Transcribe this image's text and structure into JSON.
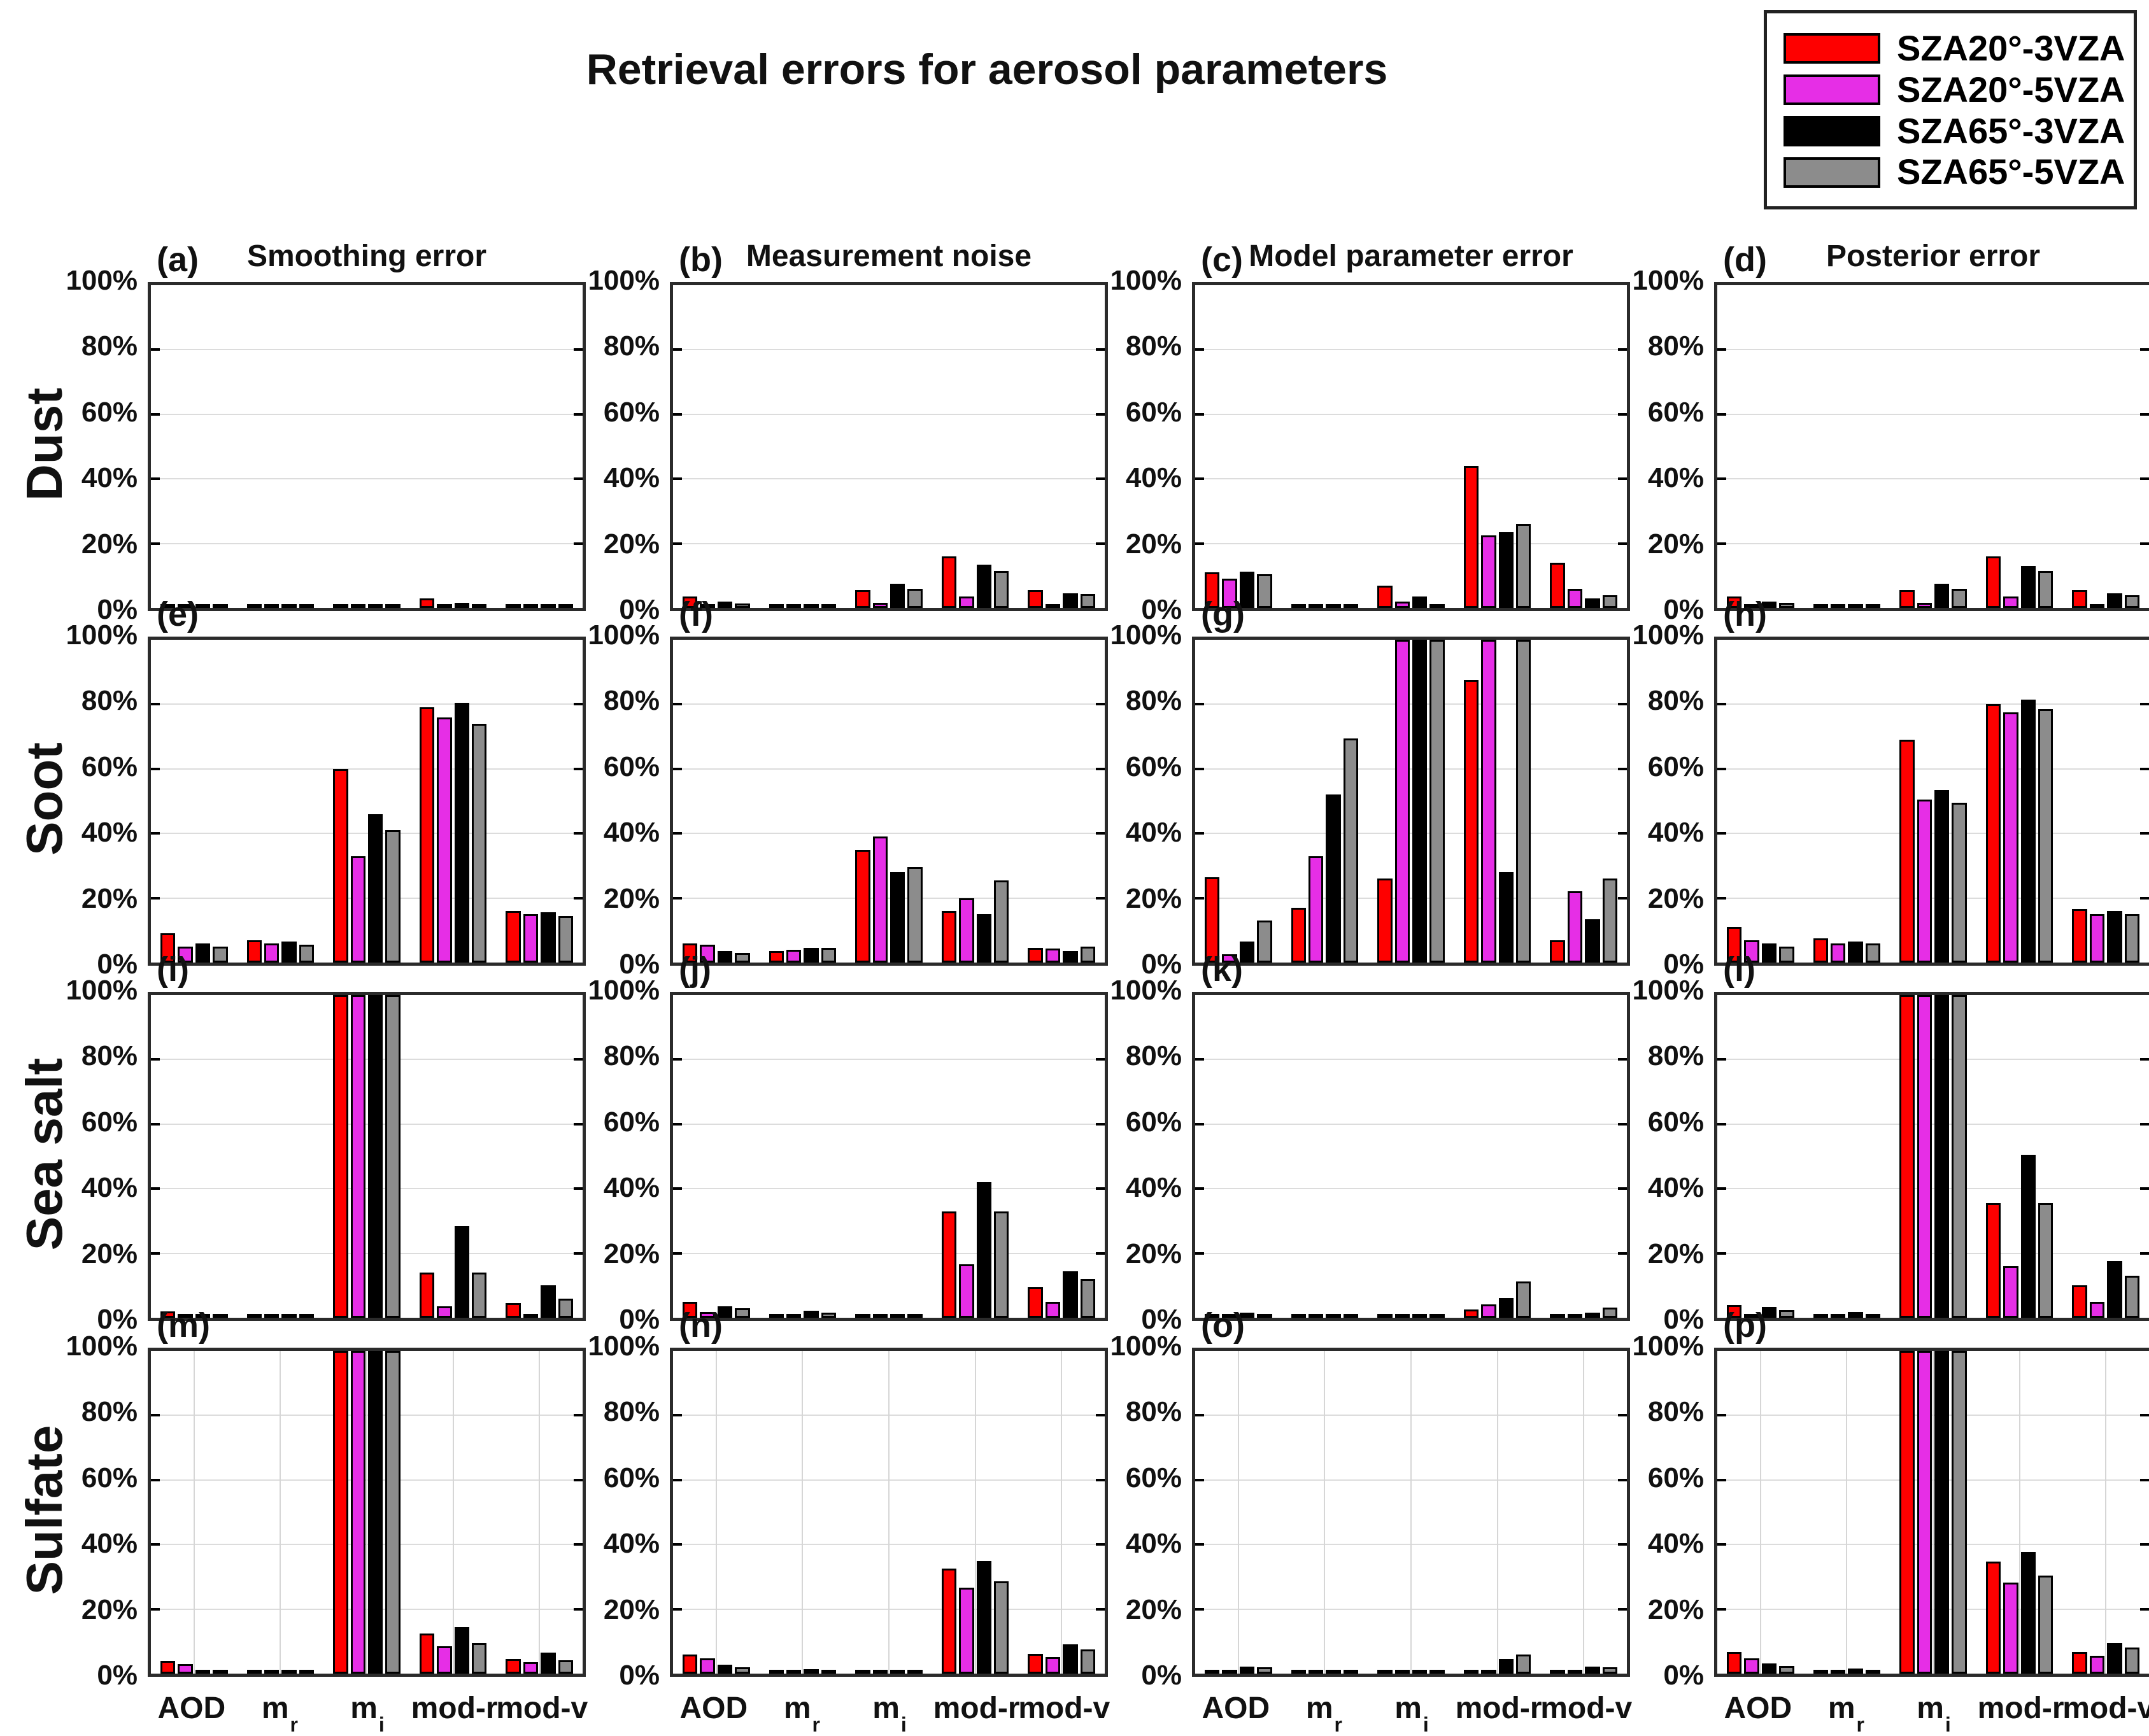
{
  "title": "Retrieval errors for aerosol parameters",
  "legend": {
    "items": [
      {
        "label": "SZA20°-3VZA",
        "color": "#fe0000"
      },
      {
        "label": "SZA20°-5VZA",
        "color": "#e62ee6"
      },
      {
        "label": "SZA65°-3VZA",
        "color": "#000000"
      },
      {
        "label": "SZA65°-5VZA",
        "color": "#8c8c8c"
      }
    ]
  },
  "chart_data": {
    "type": "bar",
    "categories": [
      "AOD",
      "m_r",
      "m_i",
      "mod-r",
      "mod-v"
    ],
    "rows": [
      "Dust",
      "Soot",
      "Sea salt",
      "Sulfate"
    ],
    "columns": [
      "Smoothing error",
      "Measurement noise",
      "Model parameter error",
      "Posterior error"
    ],
    "series_names": [
      "SZA20°-3VZA",
      "SZA20°-5VZA",
      "SZA65°-3VZA",
      "SZA65°-5VZA"
    ],
    "series_colors": [
      "#fe0000",
      "#e62ee6",
      "#000000",
      "#8c8c8c"
    ],
    "ylim": [
      0,
      100
    ],
    "yticks": [
      "0%",
      "20%",
      "40%",
      "60%",
      "80%",
      "100%"
    ],
    "grid": "horizontal all panels; vertical gridlines visible on bottom row",
    "legend_position": "top-right",
    "units": "percent",
    "panels": [
      {
        "letter": "(a)",
        "row": "Dust",
        "column": "Smoothing error",
        "series": [
          {
            "name": "SZA20°-3VZA",
            "values": [
              1.0,
              0.3,
              1.0,
              3.0,
              1.2
            ]
          },
          {
            "name": "SZA20°-5VZA",
            "values": [
              0.3,
              0.2,
              0.3,
              0.5,
              0.3
            ]
          },
          {
            "name": "SZA65°-3VZA",
            "values": [
              0.4,
              0.2,
              0.6,
              1.5,
              0.8
            ]
          },
          {
            "name": "SZA65°-5VZA",
            "values": [
              0.3,
              0.2,
              0.5,
              1.2,
              0.6
            ]
          }
        ]
      },
      {
        "letter": "(b)",
        "row": "Dust",
        "column": "Measurement noise",
        "series": [
          {
            "name": "SZA20°-3VZA",
            "values": [
              3.5,
              0.3,
              5.5,
              16.0,
              5.5
            ]
          },
          {
            "name": "SZA20°-5VZA",
            "values": [
              1.0,
              0.2,
              1.5,
              3.5,
              1.0
            ]
          },
          {
            "name": "SZA65°-3VZA",
            "values": [
              2.0,
              0.3,
              7.5,
              13.5,
              4.5
            ]
          },
          {
            "name": "SZA65°-5VZA",
            "values": [
              1.3,
              0.3,
              6.0,
              11.5,
              4.3
            ]
          }
        ]
      },
      {
        "letter": "(c)",
        "row": "Dust",
        "column": "Model parameter error",
        "series": [
          {
            "name": "SZA20°-3VZA",
            "values": [
              11.0,
              0.6,
              7.0,
              44.0,
              14.0
            ]
          },
          {
            "name": "SZA20°-5VZA",
            "values": [
              9.0,
              0.6,
              2.0,
              22.5,
              6.0
            ]
          },
          {
            "name": "SZA65°-3VZA",
            "values": [
              11.2,
              0.4,
              3.5,
              23.5,
              3.0
            ]
          },
          {
            "name": "SZA65°-5VZA",
            "values": [
              10.5,
              0.4,
              0.4,
              26.0,
              4.0
            ]
          }
        ]
      },
      {
        "letter": "(d)",
        "row": "Dust",
        "column": "Posterior error",
        "series": [
          {
            "name": "SZA20°-3VZA",
            "values": [
              3.5,
              0.4,
              5.5,
              16.0,
              5.5
            ]
          },
          {
            "name": "SZA20°-5VZA",
            "values": [
              1.0,
              0.3,
              1.5,
              3.5,
              1.0
            ]
          },
          {
            "name": "SZA65°-3VZA",
            "values": [
              2.0,
              0.4,
              7.5,
              13.0,
              4.5
            ]
          },
          {
            "name": "SZA65°-5VZA",
            "values": [
              1.5,
              0.3,
              6.0,
              11.5,
              4.0
            ]
          }
        ]
      },
      {
        "letter": "(e)",
        "row": "Soot",
        "column": "Smoothing error",
        "series": [
          {
            "name": "SZA20°-3VZA",
            "values": [
              9.0,
              7.0,
              60.0,
              79.0,
              16.0
            ]
          },
          {
            "name": "SZA20°-5VZA",
            "values": [
              5.0,
              6.0,
              33.0,
              76.0,
              15.0
            ]
          },
          {
            "name": "SZA65°-3VZA",
            "values": [
              6.0,
              6.5,
              46.0,
              80.5,
              15.5
            ]
          },
          {
            "name": "SZA65°-5VZA",
            "values": [
              5.0,
              5.5,
              41.0,
              74.0,
              14.5
            ]
          }
        ]
      },
      {
        "letter": "(f)",
        "row": "Soot",
        "column": "Measurement noise",
        "series": [
          {
            "name": "SZA20°-3VZA",
            "values": [
              6.0,
              3.5,
              35.0,
              16.0,
              4.5
            ]
          },
          {
            "name": "SZA20°-5VZA",
            "values": [
              5.5,
              4.0,
              39.0,
              20.0,
              4.3
            ]
          },
          {
            "name": "SZA65°-3VZA",
            "values": [
              3.5,
              4.5,
              28.0,
              15.0,
              3.5
            ]
          },
          {
            "name": "SZA65°-5VZA",
            "values": [
              3.0,
              4.5,
              29.5,
              25.5,
              5.0
            ]
          }
        ]
      },
      {
        "letter": "(g)",
        "row": "Soot",
        "column": "Model parameter error",
        "series": [
          {
            "name": "SZA20°-3VZA",
            "values": [
              26.5,
              17.0,
              26.0,
              87.5,
              7.0
            ]
          },
          {
            "name": "SZA20°-5VZA",
            "values": [
              2.5,
              33.0,
              100.0,
              100.0,
              22.0
            ]
          },
          {
            "name": "SZA65°-3VZA",
            "values": [
              6.5,
              52.0,
              100.0,
              28.0,
              13.5
            ]
          },
          {
            "name": "SZA65°-5VZA",
            "values": [
              13.0,
              69.5,
              100.0,
              100.0,
              26.0
            ]
          }
        ]
      },
      {
        "letter": "(h)",
        "row": "Soot",
        "column": "Posterior error",
        "series": [
          {
            "name": "SZA20°-3VZA",
            "values": [
              11.0,
              7.5,
              69.0,
              80.0,
              16.5
            ]
          },
          {
            "name": "SZA20°-5VZA",
            "values": [
              7.0,
              6.0,
              50.5,
              77.5,
              15.0
            ]
          },
          {
            "name": "SZA65°-3VZA",
            "values": [
              6.0,
              6.5,
              53.5,
              81.5,
              16.0
            ]
          },
          {
            "name": "SZA65°-5VZA",
            "values": [
              5.0,
              6.0,
              49.5,
              78.5,
              15.0
            ]
          }
        ]
      },
      {
        "letter": "(i)",
        "row": "Sea salt",
        "column": "Smoothing error",
        "series": [
          {
            "name": "SZA20°-3VZA",
            "values": [
              2.0,
              0.3,
              100.0,
              14.0,
              4.5
            ]
          },
          {
            "name": "SZA20°-5VZA",
            "values": [
              0.5,
              0.2,
              100.0,
              3.5,
              1.0
            ]
          },
          {
            "name": "SZA65°-3VZA",
            "values": [
              0.8,
              0.3,
              100.0,
              28.5,
              10.0
            ]
          },
          {
            "name": "SZA65°-5VZA",
            "values": [
              0.6,
              0.3,
              100.0,
              14.0,
              6.0
            ]
          }
        ]
      },
      {
        "letter": "(j)",
        "row": "Sea salt",
        "column": "Measurement noise",
        "series": [
          {
            "name": "SZA20°-3VZA",
            "values": [
              5.0,
              0.7,
              0.4,
              33.0,
              9.5
            ]
          },
          {
            "name": "SZA20°-5VZA",
            "values": [
              1.8,
              0.5,
              0.3,
              16.5,
              5.0
            ]
          },
          {
            "name": "SZA65°-3VZA",
            "values": [
              3.5,
              2.2,
              0.4,
              42.0,
              14.5
            ]
          },
          {
            "name": "SZA65°-5VZA",
            "values": [
              3.0,
              1.6,
              0.3,
              33.0,
              12.0
            ]
          }
        ]
      },
      {
        "letter": "(k)",
        "row": "Sea salt",
        "column": "Model parameter error",
        "series": [
          {
            "name": "SZA20°-3VZA",
            "values": [
              0.3,
              0.3,
              0.3,
              2.5,
              0.5
            ]
          },
          {
            "name": "SZA20°-5VZA",
            "values": [
              0.5,
              0.3,
              0.3,
              4.2,
              0.9
            ]
          },
          {
            "name": "SZA65°-3VZA",
            "values": [
              1.5,
              0.5,
              0.4,
              6.2,
              1.5
            ]
          },
          {
            "name": "SZA65°-5VZA",
            "values": [
              1.0,
              0.4,
              0.4,
              11.3,
              3.2
            ]
          }
        ]
      },
      {
        "letter": "(l)",
        "row": "Sea salt",
        "column": "Posterior error",
        "series": [
          {
            "name": "SZA20°-3VZA",
            "values": [
              4.0,
              0.4,
              100.0,
              35.5,
              10.0
            ]
          },
          {
            "name": "SZA20°-5VZA",
            "values": [
              1.0,
              0.3,
              100.0,
              16.0,
              5.0
            ]
          },
          {
            "name": "SZA65°-3VZA",
            "values": [
              3.3,
              1.8,
              100.0,
              50.5,
              17.5
            ]
          },
          {
            "name": "SZA65°-5VZA",
            "values": [
              2.4,
              1.2,
              100.0,
              35.5,
              13.0
            ]
          }
        ]
      },
      {
        "letter": "(m)",
        "row": "Sulfate",
        "column": "Smoothing error",
        "series": [
          {
            "name": "SZA20°-3VZA",
            "values": [
              4.0,
              0.4,
              100.0,
              12.5,
              4.5
            ]
          },
          {
            "name": "SZA20°-5VZA",
            "values": [
              3.0,
              0.3,
              100.0,
              8.5,
              3.5
            ]
          },
          {
            "name": "SZA65°-3VZA",
            "values": [
              1.0,
              0.4,
              100.0,
              14.5,
              6.5
            ]
          },
          {
            "name": "SZA65°-5VZA",
            "values": [
              0.6,
              0.3,
              100.0,
              9.5,
              4.2
            ]
          }
        ]
      },
      {
        "letter": "(n)",
        "row": "Sulfate",
        "column": "Measurement noise",
        "series": [
          {
            "name": "SZA20°-3VZA",
            "values": [
              6.0,
              1.2,
              0.3,
              32.5,
              6.2
            ]
          },
          {
            "name": "SZA20°-5VZA",
            "values": [
              4.8,
              0.6,
              0.3,
              26.7,
              5.1
            ]
          },
          {
            "name": "SZA65°-3VZA",
            "values": [
              2.7,
              1.4,
              0.4,
              35.0,
              9.0
            ]
          },
          {
            "name": "SZA65°-5VZA",
            "values": [
              1.9,
              1.0,
              0.3,
              28.7,
              7.5
            ]
          }
        ]
      },
      {
        "letter": "(o)",
        "row": "Sulfate",
        "column": "Model parameter error",
        "series": [
          {
            "name": "SZA20°-3VZA",
            "values": [
              0.2,
              0.3,
              0.3,
              0.6,
              0.3
            ]
          },
          {
            "name": "SZA20°-5VZA",
            "values": [
              0.3,
              0.3,
              0.3,
              1.2,
              0.4
            ]
          },
          {
            "name": "SZA65°-3VZA",
            "values": [
              2.2,
              0.5,
              0.4,
              4.6,
              2.2
            ]
          },
          {
            "name": "SZA65°-5VZA",
            "values": [
              1.9,
              0.4,
              0.4,
              5.9,
              2.0
            ]
          }
        ]
      },
      {
        "letter": "(p)",
        "row": "Sulfate",
        "column": "Posterior error",
        "series": [
          {
            "name": "SZA20°-3VZA",
            "values": [
              6.7,
              1.2,
              100.0,
              34.7,
              6.7
            ]
          },
          {
            "name": "SZA20°-5VZA",
            "values": [
              4.8,
              0.6,
              100.0,
              28.2,
              5.6
            ]
          },
          {
            "name": "SZA65°-3VZA",
            "values": [
              3.1,
              1.5,
              100.0,
              37.6,
              9.4
            ]
          },
          {
            "name": "SZA65°-5VZA",
            "values": [
              2.4,
              1.0,
              100.0,
              30.3,
              8.1
            ]
          }
        ]
      }
    ]
  }
}
